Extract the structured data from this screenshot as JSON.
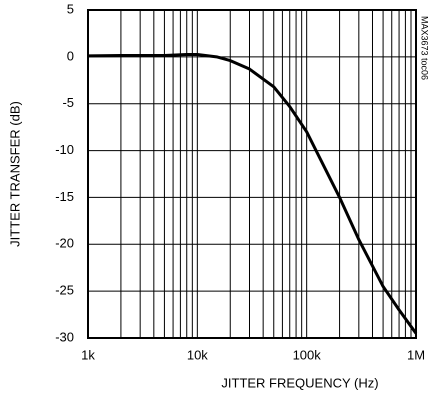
{
  "chart_data": {
    "type": "line",
    "xlabel": "JITTER FREQUENCY (Hz)",
    "ylabel": "JITTER TRANSFER (dB)",
    "annotation": "MAX3673 toc06",
    "x": [
      1000,
      2000,
      5000,
      8000,
      10000,
      15000,
      20000,
      30000,
      50000,
      70000,
      100000,
      200000,
      300000,
      500000,
      700000,
      1000000
    ],
    "series": [
      {
        "color": "#000000",
        "values": [
          0.1,
          0.15,
          0.15,
          0.25,
          0.25,
          0,
          -0.4,
          -1.3,
          -3.2,
          -5.3,
          -8,
          -15,
          -19.5,
          -24.5,
          -27,
          -29.5
        ]
      }
    ],
    "xscale": "log",
    "xlim": [
      1000,
      1000000
    ],
    "xticks": [
      {
        "value": 1000,
        "label": "1k"
      },
      {
        "value": 10000,
        "label": "10k"
      },
      {
        "value": 100000,
        "label": "100k"
      },
      {
        "value": 1000000,
        "label": "1M"
      }
    ],
    "xminorticks": [
      2000,
      3000,
      4000,
      5000,
      6000,
      7000,
      8000,
      9000,
      20000,
      30000,
      40000,
      50000,
      60000,
      70000,
      80000,
      90000,
      200000,
      300000,
      400000,
      500000,
      600000,
      700000,
      800000,
      900000
    ],
    "ylim": [
      -30,
      5
    ],
    "yticks": [
      5,
      0,
      -5,
      -10,
      -15,
      -20,
      -25,
      -30
    ],
    "grid": true
  }
}
